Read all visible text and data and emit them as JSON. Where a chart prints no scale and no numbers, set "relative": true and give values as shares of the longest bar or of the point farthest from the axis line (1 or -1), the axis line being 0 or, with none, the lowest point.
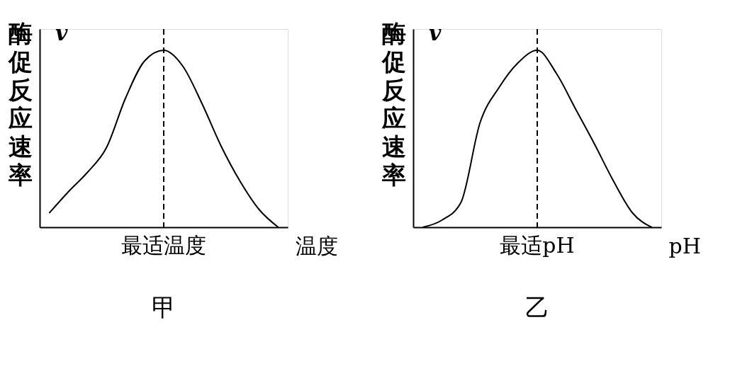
{
  "chart_data": [
    {
      "type": "line",
      "title": "甲",
      "xlabel": "温度",
      "ylabel": "酶促反应速率",
      "annotations": [
        "v",
        "最适温度"
      ],
      "relative": true,
      "categories": [
        null,
        null,
        null,
        null,
        null,
        null,
        null,
        null,
        null,
        null,
        null,
        null,
        null
      ],
      "series": [
        {
          "color": "#000000",
          "values": [
            0.08,
            0.2,
            0.31,
            0.45,
            0.73,
            0.94,
            1,
            0.91,
            0.7,
            0.46,
            0.26,
            0.1,
            0
          ]
        }
      ],
      "grid": false,
      "marker": "none",
      "line_style": "solid"
    },
    {
      "type": "line",
      "title": "乙",
      "xlabel": "pH",
      "ylabel": "酶促反应速率",
      "annotations": [
        "v",
        "最适pH"
      ],
      "relative": true,
      "categories": [
        null,
        null,
        null,
        null,
        null,
        null,
        null,
        null,
        null,
        null,
        null,
        null,
        null
      ],
      "series": [
        {
          "color": "#000000",
          "values": [
            0,
            0.04,
            0.14,
            0.59,
            0.79,
            0.93,
            1,
            0.87,
            0.67,
            0.47,
            0.26,
            0.08,
            0
          ]
        }
      ],
      "grid": false,
      "marker": "none",
      "line_style": "solid"
    }
  ]
}
